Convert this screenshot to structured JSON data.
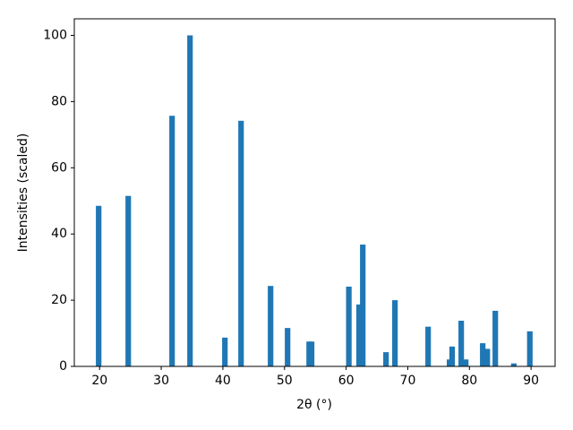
{
  "chart_data": {
    "type": "bar",
    "x_label": "2θ (°)",
    "y_label": "Intensities (scaled)",
    "x": [
      19.85,
      24.65,
      31.76,
      34.67,
      40.33,
      42.95,
      47.74,
      50.5,
      54.0,
      54.4,
      60.44,
      62.1,
      62.7,
      66.47,
      67.92,
      73.3,
      76.78,
      77.2,
      78.67,
      79.4,
      82.16,
      82.9,
      84.2,
      87.2,
      89.8
    ],
    "values": [
      48.5,
      51.5,
      75.7,
      100,
      8.7,
      74.2,
      24.3,
      11.6,
      7.5,
      7.5,
      24.1,
      18.7,
      36.8,
      4.3,
      20,
      12,
      2.1,
      6,
      13.8,
      2.1,
      7,
      5.3,
      16.8,
      0.9,
      10.6
    ],
    "color": "#1f77b4",
    "xlim": [
      15.9,
      93.9
    ],
    "xticks": [
      20,
      30,
      40,
      50,
      60,
      70,
      80,
      90
    ],
    "ylim": [
      0,
      105
    ],
    "yticks": [
      0,
      20,
      40,
      60,
      80,
      100
    ]
  }
}
